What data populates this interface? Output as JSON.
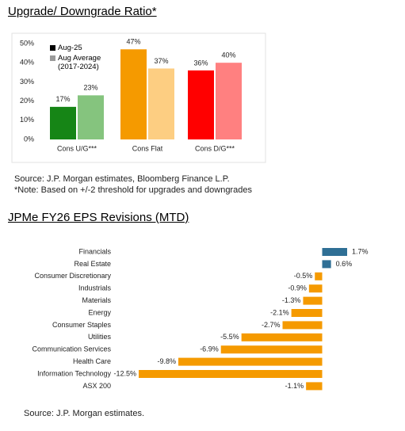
{
  "chart_data": [
    {
      "type": "bar",
      "title": "Upgrade/ Downgrade Ratio*",
      "categories": [
        "Cons U/G***",
        "Cons Flat",
        "Cons D/G***"
      ],
      "series": [
        {
          "name": "Aug-25",
          "color": "#000000",
          "colors": [
            "#168516",
            "#f59a00",
            "#ff0000"
          ],
          "values": [
            17,
            47,
            36
          ],
          "value_labels": [
            "17%",
            "47%",
            "36%"
          ]
        },
        {
          "name": "Aug Average (2017-2024)",
          "color": "#9a9a9a",
          "colors": [
            "#85c47e",
            "#fdce82",
            "#ff8080"
          ],
          "values": [
            23,
            37,
            40
          ],
          "value_labels": [
            "23%",
            "37%",
            "40%"
          ]
        }
      ],
      "ylim": [
        0,
        50
      ],
      "yticks": [
        {
          "value": 0,
          "label": "0%"
        },
        {
          "value": 10,
          "label": "10%"
        },
        {
          "value": 20,
          "label": "20%"
        },
        {
          "value": 30,
          "label": "30%"
        },
        {
          "value": 40,
          "label": "40%"
        },
        {
          "value": 50,
          "label": "50%"
        }
      ],
      "grid": false,
      "legend": "top-left",
      "source": "Source: J.P. Morgan estimates, Bloomberg Finance L.P.",
      "note": "*Note: Based on +/-2 threshold for upgrades and downgrades"
    },
    {
      "type": "barh",
      "title": "JPMe FY26 EPS Revisions (MTD)",
      "categories": [
        "Financials",
        "Real Estate",
        "Consumer Discretionary",
        "Industrials",
        "Materials",
        "Energy",
        "Consumer Staples",
        "Utilities",
        "Communication Services",
        "Health Care",
        "Information Technology",
        "ASX 200"
      ],
      "values": [
        1.7,
        0.6,
        -0.5,
        -0.9,
        -1.3,
        -2.1,
        -2.7,
        -5.5,
        -6.9,
        -9.8,
        -12.5,
        -1.1
      ],
      "value_labels": [
        "1.7%",
        "0.6%",
        "-0.5%",
        "-0.9%",
        "-1.3%",
        "-2.1%",
        "-2.7%",
        "-5.5%",
        "-6.9%",
        "-9.8%",
        "-12.5%",
        "-1.1%"
      ],
      "positive_color": "#2f6f95",
      "negative_color": "#f59a00",
      "source": "Source: J.P. Morgan estimates."
    }
  ]
}
